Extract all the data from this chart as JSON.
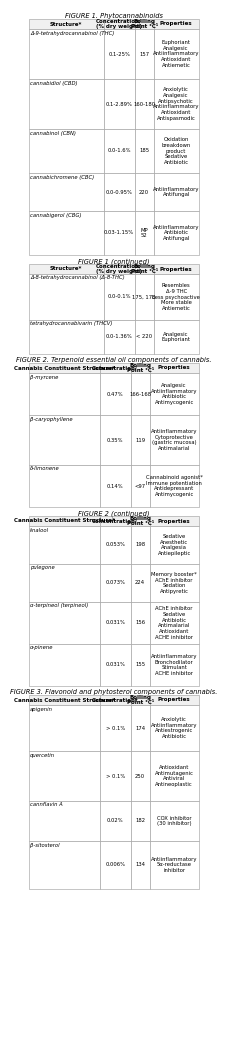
{
  "title1": "FIGURE 1. Phytocannabinoids",
  "title2": "FIGURE 1 (continued)",
  "title3": "FIGURE 2. Terpenoid essential oil components of cannabis.",
  "title4": "FIGURE 2 (continued)",
  "title5": "FIGURE 3. Flavonoid and phytosterol components of cannabis.",
  "table1_headers": [
    "Structure*",
    "Concentration/\n(% dry weight)",
    "Boiling\nPoint °C¹",
    "Properties"
  ],
  "table1_rows": [
    [
      "Δ-9-tetrahydrocannabinol (THC)",
      "0.1-25%",
      "157",
      "Euphoriant\nAnalgesic\nAntiinflammatory\nAntioxidant\nAntiemetic"
    ],
    [
      "cannabidiol (CBD)",
      "0.1-2.89%",
      "160-180",
      "Anxiolytic\nAnalgesic\nAntipsychotic\nAntiinflammatory\nAntioxidant\nAntispasmodic"
    ],
    [
      "cannabinol (CBN)",
      "0.0-1.6%",
      "185",
      "Oxidation\nbreakdown\nproduct\nSedative\nAntibiotic"
    ],
    [
      "cannabichromene (CBC)",
      "0.0-0.95%",
      "220",
      "Antiinflammatory\nAntifungal"
    ],
    [
      "cannabigerol (CBG)",
      "0.03-1.15%",
      "MP\n52",
      "Antiinflammatory\nAntibiotic\nAntifungal"
    ]
  ],
  "table2_headers": [
    "Structure*",
    "Concentration/\n(% dry weight)",
    "Boiling\nPoint °C¹",
    "Properties"
  ],
  "table2_rows": [
    [
      "Δ-8-tetrahydrocannabinol (Δ-8-THC)",
      "0.0-0.1%",
      "175, 178",
      "Resembles\nΔ-9 THC\nLess psychoactive\nMore stable\nAntiemetic"
    ],
    [
      "tetrahydrocannabivarin (THCV)",
      "0.0-1.36%",
      "< 220",
      "Analgesic\nEuphoriant"
    ]
  ],
  "table3_headers": [
    "Cannabis Constituent Structure*",
    "Concentration/",
    "Boiling\nPoint °C¹",
    "Properties"
  ],
  "table3_rows": [
    [
      "β-myrcene",
      "0.47%",
      "166-168",
      "Analgesic\nAntiinflammatory\nAntibiotic\nAntimycogenic"
    ],
    [
      "β-caryophyllene",
      "0.35%",
      "119",
      "Antiinflammatory\nCytoprotective\n(gastric mucosa)\nAntimalarial"
    ],
    [
      "δ-limonene",
      "0.14%",
      "<97",
      "Cannabinoid agonist*\nImmune potentiation\nAntidepressant\nAntimycogenic"
    ]
  ],
  "table3b_rows": [
    [
      "linalool",
      "0.053%",
      "198",
      "Sedative\nAnesthetic\nAnalgesia\nAntiepileptic"
    ],
    [
      "pulegone",
      "0.073%",
      "224",
      "Memory booster*\nAChE inhibitor\nSedation\nAntipyretic"
    ],
    [
      "α-terpineol (terpineol)",
      "0.031%",
      "156",
      "AChE inhibitor\nSedative\nAntibiotic\nAntimalarial\nAntioxidant\nACHE inhibitor"
    ],
    [
      "α-pinene",
      "0.031%",
      "155",
      "Antiinflammatory\nBronchodilator\nStimulant\nACHE inhibitor"
    ]
  ],
  "table4_headers": [
    "Cannabis Constituent Structure*",
    "Concentration†",
    "Boiling\nPoint °C¹",
    "Properties"
  ],
  "table4_rows": [
    [
      "apigenin",
      "> 0.1%",
      "174",
      "Anxiolytic\nAntiinflammatory\nAntiestrogenic\nAntibiotic"
    ],
    [
      "quercetin",
      "> 0.1%",
      "250",
      "Antioxidant\nAntimutagenic\nAntiviral\nAntineoplastic"
    ],
    [
      "cannflavin A",
      "0.02%",
      "182",
      "COX inhibitor\n(30 inhibitor)"
    ],
    [
      "β-sitosterol",
      "0.006%",
      "134",
      "Antiinflammatory\n5α-reductase\ninhibitor"
    ]
  ],
  "bg_color": "#ffffff",
  "border_color": "#999999",
  "text_color": "#000000",
  "title_fontsize": 4.8,
  "header_fontsize": 4.0,
  "cell_fontsize": 3.8,
  "name_fontsize": 3.8
}
